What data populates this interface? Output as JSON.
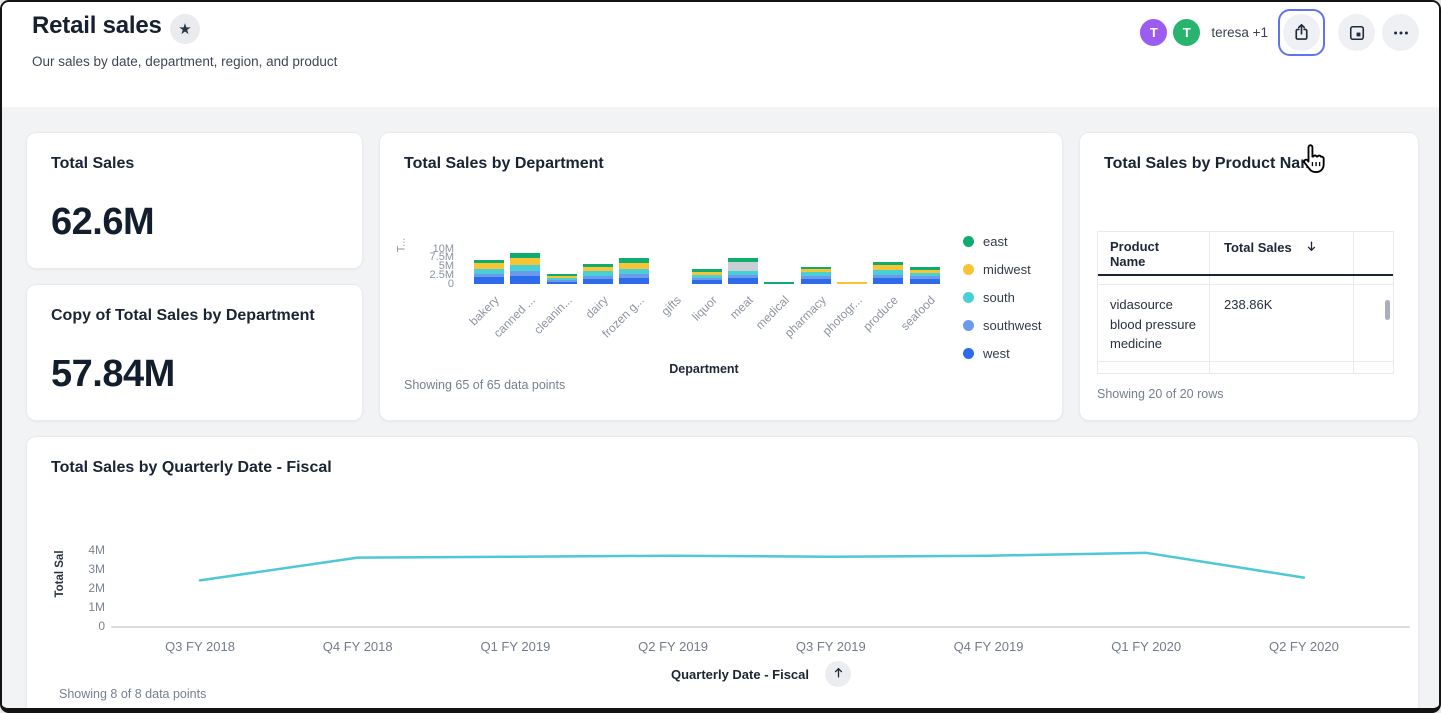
{
  "header": {
    "title": "Retail sales",
    "subtitle": "Our sales by date, department, region, and product",
    "favorite_icon": "star-icon",
    "avatars": [
      {
        "initial": "T",
        "color": "#9d5cf0"
      },
      {
        "initial": "T",
        "color": "#27b56e"
      }
    ],
    "collaborators_label": "teresa +1",
    "toolbar_icons": [
      "share-icon",
      "panel-icon",
      "ellipsis-icon"
    ]
  },
  "kpi_cards": [
    {
      "title": "Total Sales",
      "value": "62.6M"
    },
    {
      "title": "Copy of Total Sales by Department",
      "value": "57.84M"
    }
  ],
  "table_card": {
    "title": "Total Sales by Product Name",
    "columns": [
      "Product Name",
      "Total Sales"
    ],
    "sort": {
      "column": "Total Sales",
      "direction": "descending",
      "icon": "arrow-down-icon"
    },
    "rows": [
      {
        "product_name": "vidasource blood pressure medicine",
        "total_sales": "238.86K"
      }
    ],
    "footer": "Showing 20 of 20 rows"
  },
  "chart_data": [
    {
      "id": "total-sales-by-department",
      "type": "bar",
      "stacked": true,
      "title": "Total Sales by Department",
      "xlabel": "Department",
      "ylabel": "T...",
      "ylim_millions": [
        0,
        10
      ],
      "ytick_labels": [
        "0",
        "2.5M",
        "5M",
        "7.5M",
        "10M"
      ],
      "ytick_values_millions": [
        0,
        2.5,
        5,
        7.5,
        10
      ],
      "legend": [
        "east",
        "midwest",
        "south",
        "southwest",
        "west"
      ],
      "legend_position": "right",
      "categories": [
        "bakery",
        "canned ...",
        "cleanin...",
        "dairy",
        "frozen g...",
        "gifts",
        "liquor",
        "meat",
        "medical",
        "pharmacy",
        "photogr...",
        "produce",
        "seafood"
      ],
      "series_stack_bottom_to_top": [
        {
          "name": "west",
          "color": "#2e6bea",
          "values_millions": [
            2.0,
            2.2,
            0.2,
            1.4,
            1.8,
            0,
            1.1,
            1.6,
            0,
            1.3,
            0,
            1.8,
            1.5
          ]
        },
        {
          "name": "southwest",
          "color": "#6d9bec",
          "values_millions": [
            1.0,
            1.5,
            0.15,
            0.9,
            1.0,
            0,
            0.7,
            1.0,
            0,
            0.9,
            0,
            0.9,
            0.7
          ]
        },
        {
          "name": "south",
          "color": "#49cfd6",
          "values_millions": [
            1.4,
            1.8,
            0.2,
            1.3,
            1.6,
            0,
            0.9,
            1.0,
            0,
            1.3,
            0,
            1.3,
            1.0
          ]
        },
        {
          "name": "midwest",
          "color": "#f9c433",
          "values_millions": [
            1.5,
            1.9,
            0.2,
            1.3,
            1.5,
            0,
            0.8,
            0,
            0,
            0.9,
            0.25,
            1.3,
            0.8
          ]
        },
        {
          "name": "unlabeled",
          "color": "#c9cdd4",
          "values_millions": [
            0,
            0,
            0,
            0,
            0,
            0,
            0,
            2.7,
            0,
            0,
            0,
            0,
            0
          ]
        },
        {
          "name": "east",
          "color": "#10ab6e",
          "values_millions": [
            1.1,
            1.5,
            0.15,
            0.9,
            1.4,
            0,
            0.7,
            1.1,
            0.4,
            0.4,
            0,
            1.1,
            0.8
          ]
        }
      ],
      "footer": "Showing 65 of 65 data points"
    },
    {
      "id": "total-sales-by-quarterly-date-fiscal",
      "type": "line",
      "title": "Total Sales by Quarterly Date - Fiscal",
      "xlabel": "Quarterly Date - Fiscal",
      "xaxis_sort_icon": "arrow-up-icon",
      "ylabel": "Total Sal",
      "color": "#4ec7d7",
      "ylim_millions": [
        0,
        4
      ],
      "ytick_labels": [
        "0",
        "1M",
        "2M",
        "3M",
        "4M"
      ],
      "ytick_values_millions": [
        0,
        1,
        2,
        3,
        4
      ],
      "x": [
        "Q3 FY 2018",
        "Q4 FY 2018",
        "Q1 FY 2019",
        "Q2 FY 2019",
        "Q3 FY 2019",
        "Q4 FY 2019",
        "Q1 FY 2020",
        "Q2 FY 2020"
      ],
      "values_millions": [
        2.4,
        3.6,
        3.65,
        3.7,
        3.65,
        3.7,
        3.85,
        2.55
      ],
      "footer": "Showing 8 of 8 data points"
    }
  ]
}
